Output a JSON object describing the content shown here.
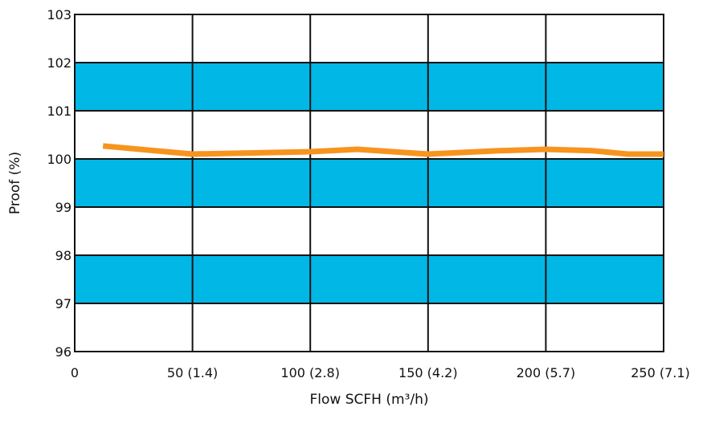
{
  "chart_data": {
    "type": "line",
    "title": "",
    "xlabel": "Flow SCFH (m³/h)",
    "ylabel": "Proof (%)",
    "xlim": [
      0,
      250
    ],
    "ylim": [
      96,
      103
    ],
    "x_ticks": [
      {
        "value": 0,
        "label": "0"
      },
      {
        "value": 50,
        "label": "50 (1.4)"
      },
      {
        "value": 100,
        "label": "100 (2.8)"
      },
      {
        "value": 150,
        "label": "150 (4.2)"
      },
      {
        "value": 200,
        "label": "200 (5.7)"
      },
      {
        "value": 250,
        "label": "250 (7.1)"
      }
    ],
    "y_ticks": [
      {
        "value": 96,
        "label": "96"
      },
      {
        "value": 97,
        "label": "97"
      },
      {
        "value": 98,
        "label": "98"
      },
      {
        "value": 99,
        "label": "99"
      },
      {
        "value": 100,
        "label": "100"
      },
      {
        "value": 101,
        "label": "101"
      },
      {
        "value": 102,
        "label": "102"
      },
      {
        "value": 103,
        "label": "103"
      }
    ],
    "bands": [
      {
        "from": 97,
        "to": 98
      },
      {
        "from": 99,
        "to": 100
      },
      {
        "from": 101,
        "to": 102
      }
    ],
    "grid": true,
    "series": [
      {
        "x": [
          12,
          50,
          100,
          120,
          150,
          180,
          200,
          220,
          235,
          250
        ],
        "y": [
          100.27,
          100.1,
          100.15,
          100.2,
          100.1,
          100.17,
          100.2,
          100.17,
          100.1,
          100.1
        ]
      }
    ],
    "colors": {
      "band": "#00b7e5",
      "line": "#f7941d",
      "grid": "#111111",
      "background": "#ffffff"
    }
  }
}
